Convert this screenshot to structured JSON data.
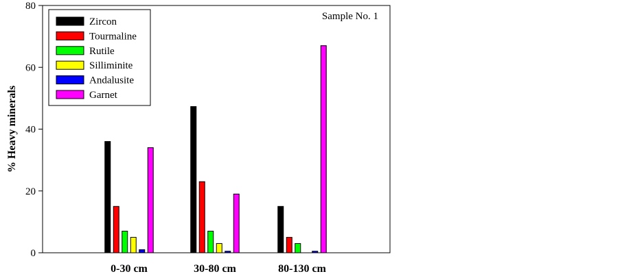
{
  "chart_data": {
    "type": "bar",
    "categories": [
      "0-30 cm",
      "30-80 cm",
      "80-130 cm"
    ],
    "series": [
      {
        "name": "Zircon",
        "color": "#000000",
        "values": [
          36,
          47.3,
          15
        ]
      },
      {
        "name": "Tourmaline",
        "color": "#ff0000",
        "values": [
          15,
          23,
          5
        ]
      },
      {
        "name": "Rutile",
        "color": "#00ff00",
        "values": [
          7,
          7,
          3
        ]
      },
      {
        "name": "Silliminite",
        "color": "#ffff00",
        "values": [
          5,
          3,
          0
        ]
      },
      {
        "name": "Andalusite",
        "color": "#0000ff",
        "values": [
          1,
          0.5,
          0.5
        ]
      },
      {
        "name": "Garnet",
        "color": "#ff00ff",
        "values": [
          34,
          19,
          67
        ]
      }
    ],
    "title": "",
    "annotation": "Sample No. 1",
    "xlabel": "",
    "ylabel": "% Heavy minerals",
    "ylim": [
      0,
      80
    ],
    "yticks": [
      0,
      20,
      40,
      60,
      80
    ],
    "grid": false,
    "legend_position": "top-left"
  }
}
